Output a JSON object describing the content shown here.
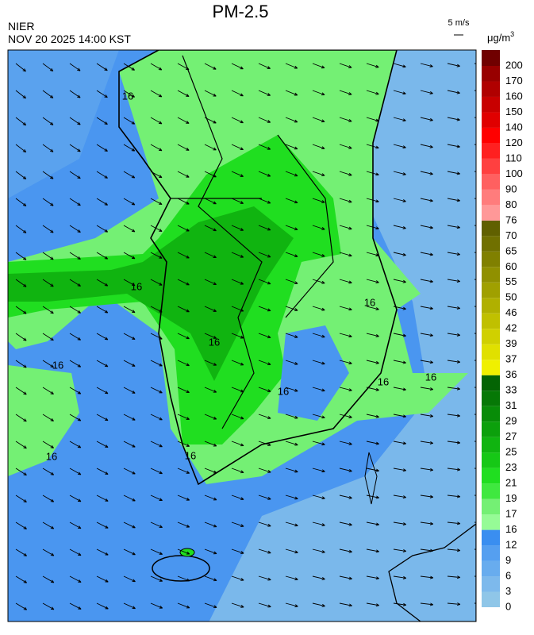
{
  "header": {
    "title": "PM-2.5",
    "agency": "NIER",
    "datetime": "NOV 20 2025 14:00 KST",
    "wind_scale": "5 m/s"
  },
  "colorbar": {
    "unit": "μg/m",
    "unit_sup": "3",
    "labels": [
      "0",
      "3",
      "6",
      "9",
      "12",
      "16",
      "17",
      "19",
      "21",
      "23",
      "25",
      "27",
      "29",
      "31",
      "33",
      "36",
      "37",
      "39",
      "42",
      "46",
      "50",
      "55",
      "60",
      "65",
      "70",
      "76",
      "80",
      "90",
      "100",
      "110",
      "120",
      "140",
      "150",
      "160",
      "170",
      "200"
    ],
    "colors": [
      "#8fc6e8",
      "#7db9ec",
      "#68acee",
      "#559ff0",
      "#3a8ef0",
      "#96fb96",
      "#74f074",
      "#3fe83f",
      "#20de20",
      "#16c816",
      "#10b410",
      "#0ca00c",
      "#088c08",
      "#067806",
      "#046404",
      "#f0f000",
      "#e0e000",
      "#d0d000",
      "#c0c000",
      "#b0b000",
      "#a0a000",
      "#909000",
      "#808000",
      "#707000",
      "#606000",
      "#ff9898",
      "#ff7c7c",
      "#ff6060",
      "#ff4040",
      "#ff2020",
      "#ff0000",
      "#e00000",
      "#c80000",
      "#b00000",
      "#980000",
      "#700000"
    ]
  },
  "map": {
    "contour_labels": [
      "16",
      "16",
      "16",
      "16",
      "16",
      "16",
      "16",
      "16",
      "16",
      "16"
    ]
  }
}
